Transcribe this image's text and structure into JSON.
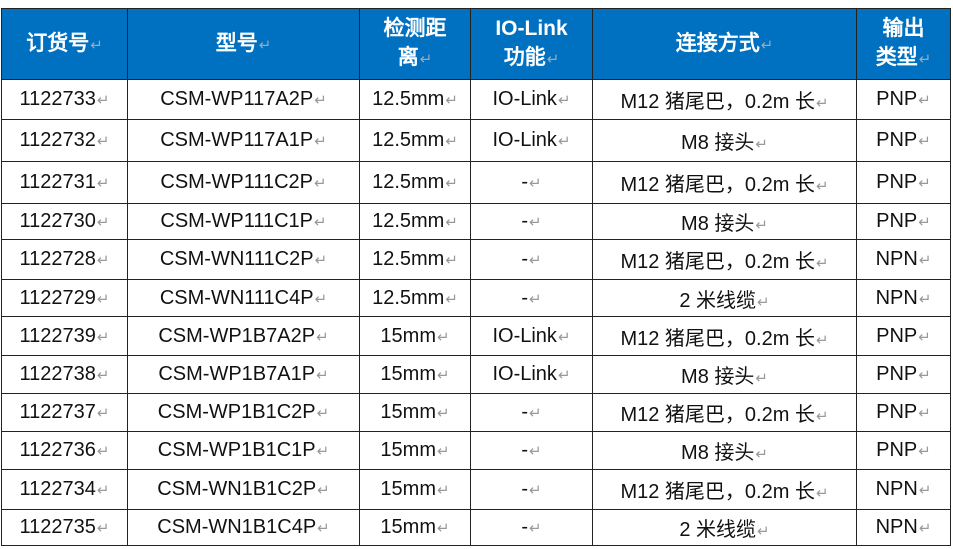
{
  "table": {
    "headers": [
      "订货号",
      "型号",
      "检测距离",
      "IO-Link功能",
      "连接方式",
      "输出类型"
    ],
    "header_lines": [
      [
        "订货号"
      ],
      [
        "型号"
      ],
      [
        "检测距",
        "离"
      ],
      [
        "IO-Link",
        "功能"
      ],
      [
        "连接方式"
      ],
      [
        "输出",
        "类型"
      ]
    ],
    "rows": [
      [
        "1122733",
        "CSM-WP117A2P",
        "12.5mm",
        "IO-Link",
        "M12 猪尾巴，0.2m 长",
        "PNP"
      ],
      [
        "1122732",
        "CSM-WP117A1P",
        "12.5mm",
        "IO-Link",
        "M8 接头",
        "PNP"
      ],
      [
        "1122731",
        "CSM-WP111C2P",
        "12.5mm",
        "-",
        "M12 猪尾巴，0.2m 长",
        "PNP"
      ],
      [
        "1122730",
        "CSM-WP111C1P",
        "12.5mm",
        "-",
        "M8 接头",
        "PNP"
      ],
      [
        "1122728",
        "CSM-WN111C2P",
        "12.5mm",
        "-",
        "M12 猪尾巴，0.2m 长",
        "NPN"
      ],
      [
        "1122729",
        "CSM-WN111C4P",
        "12.5mm",
        "-",
        "2 米线缆",
        "NPN"
      ],
      [
        "1122739",
        "CSM-WP1B7A2P",
        "15mm",
        "IO-Link",
        "M12 猪尾巴，0.2m 长",
        "PNP"
      ],
      [
        "1122738",
        "CSM-WP1B7A1P",
        "15mm",
        "IO-Link",
        "M8 接头",
        "PNP"
      ],
      [
        "1122737",
        "CSM-WP1B1C2P",
        "15mm",
        "-",
        "M12 猪尾巴，0.2m 长",
        "PNP"
      ],
      [
        "1122736",
        "CSM-WP1B1C1P",
        "15mm",
        "-",
        "M8 接头",
        "PNP"
      ],
      [
        "1122734",
        "CSM-WN1B1C2P",
        "15mm",
        "-",
        "M12 猪尾巴，0.2m 长",
        "NPN"
      ],
      [
        "1122735",
        "CSM-WN1B1C4P",
        "15mm",
        "-",
        "2 米线缆",
        "NPN"
      ]
    ]
  },
  "colors": {
    "header_bg": "#0070c0",
    "header_text": "#ffffff",
    "border": "#222222"
  }
}
